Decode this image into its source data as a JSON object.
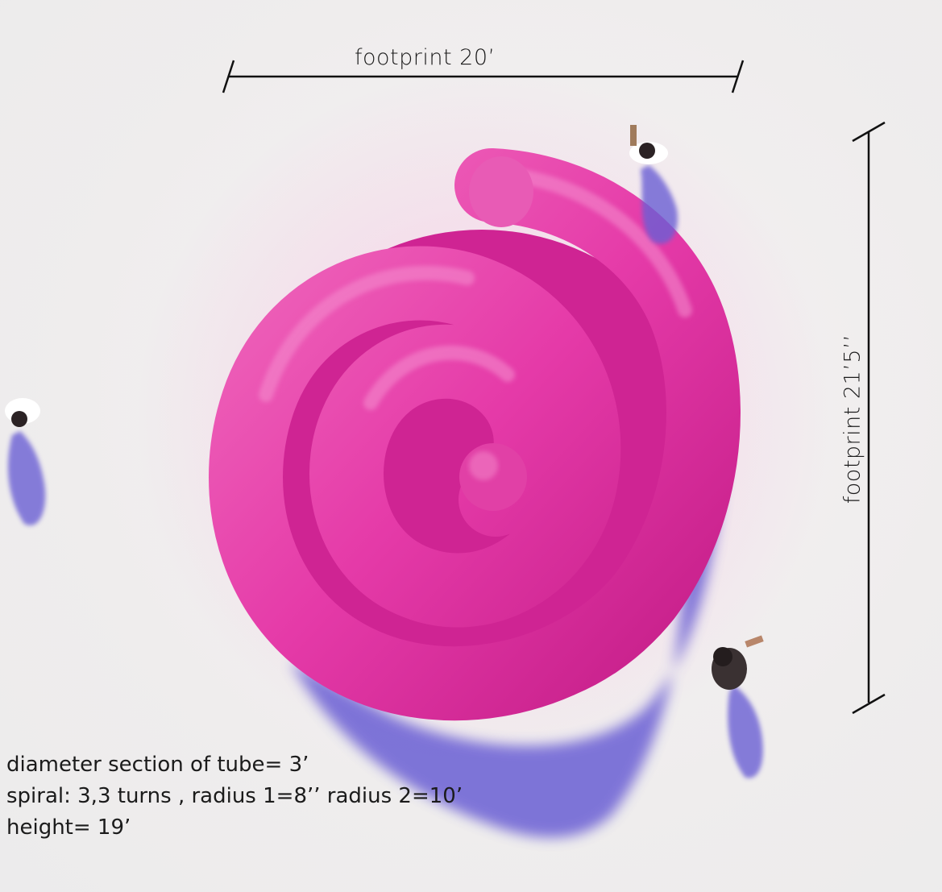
{
  "dimensions": {
    "width_label": "footprint  20’",
    "height_label": "footprint  21’5’’"
  },
  "specs": {
    "line1": "diameter section of tube= 3’",
    "line2": "spiral: 3,3 turns , radius 1=8’’  radius 2=10’",
    "line3": "height= 19’"
  },
  "colors": {
    "tube": "#e83aa9",
    "tube_dark": "#c81e8c",
    "shadow": "#6d63d6",
    "background": "#efeded",
    "line": "#111111"
  }
}
